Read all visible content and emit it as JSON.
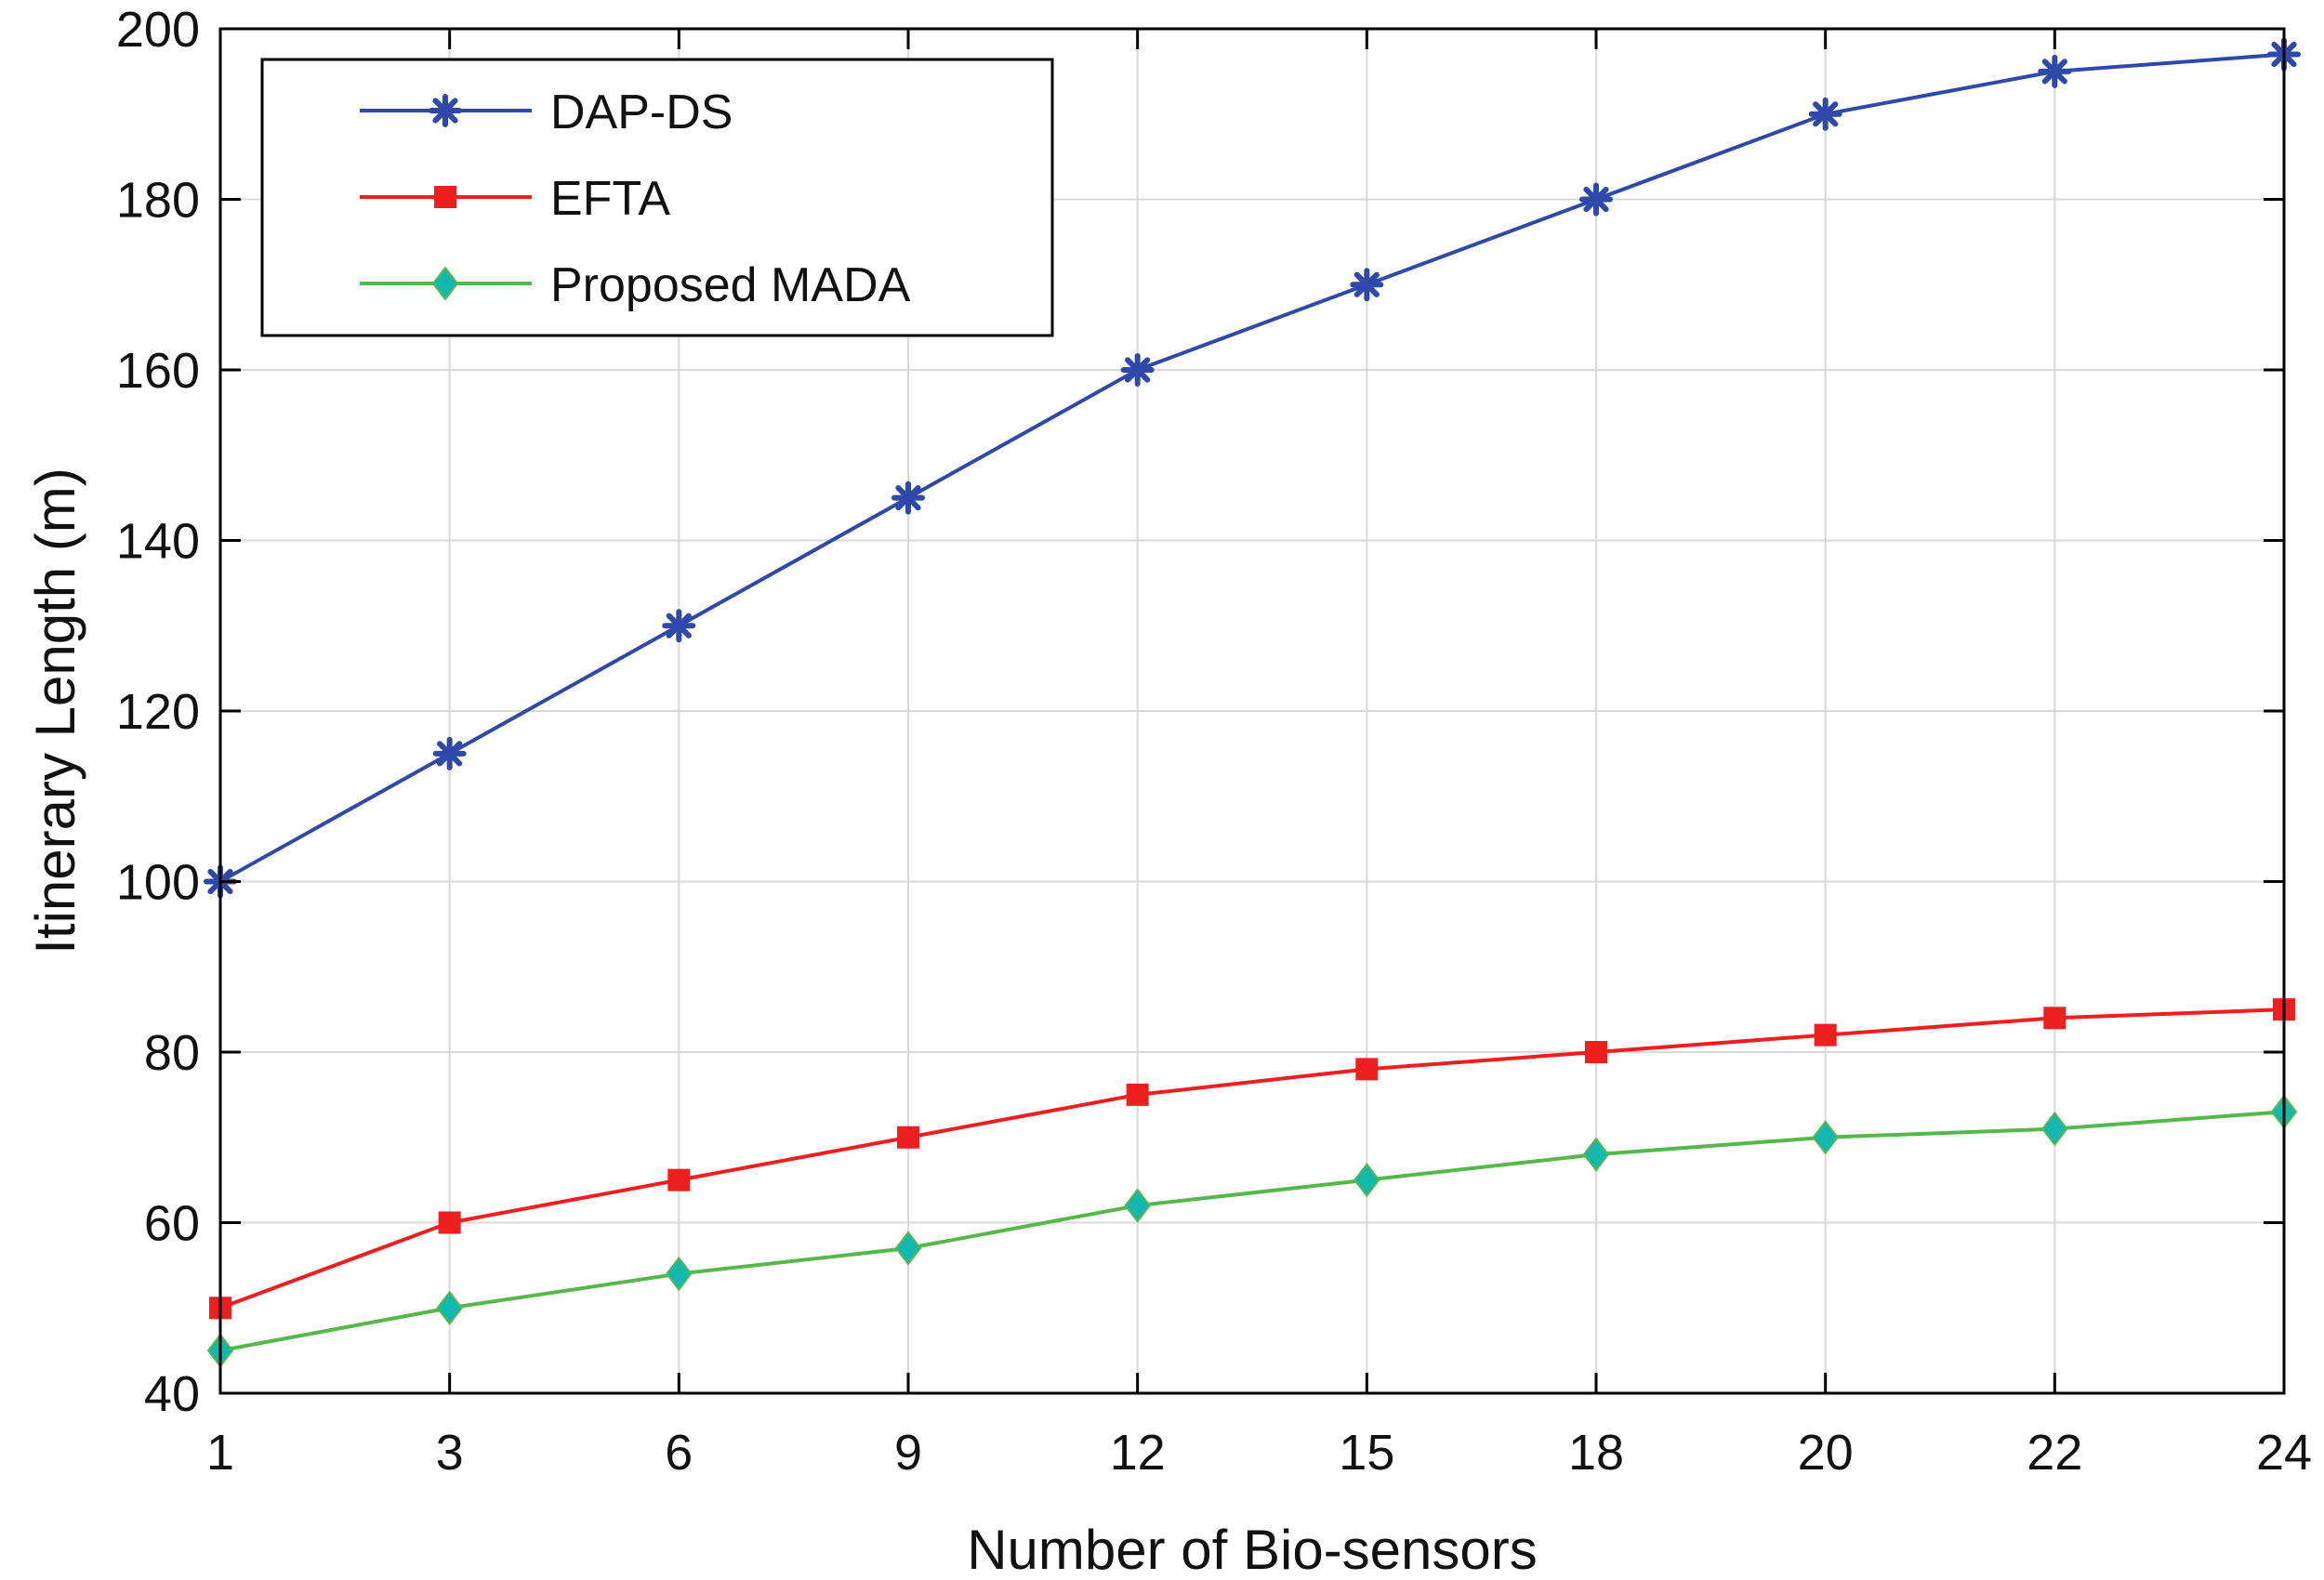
{
  "chart_data": {
    "type": "line",
    "title": "",
    "xlabel": "Number of Bio-sensors",
    "ylabel": "Itinerary Length (m)",
    "categories": [
      "1",
      "3",
      "6",
      "9",
      "12",
      "15",
      "18",
      "20",
      "22",
      "24"
    ],
    "ylim": [
      40,
      200
    ],
    "yticks": [
      40,
      60,
      80,
      100,
      120,
      140,
      160,
      180,
      200
    ],
    "grid": true,
    "legend_position": "top-left",
    "series": [
      {
        "name": "DAP-DS",
        "color": "#2f49a8",
        "marker": "star",
        "values": [
          100,
          115,
          130,
          145,
          160,
          170,
          180,
          190,
          195,
          197
        ]
      },
      {
        "name": "EFTA",
        "color": "#ee1f1f",
        "marker": "square",
        "values": [
          50,
          60,
          65,
          70,
          75,
          78,
          80,
          82,
          84,
          85
        ]
      },
      {
        "name": "Proposed MADA",
        "color": "#55b84a",
        "marker_color": "#14b8b0",
        "marker": "diamond",
        "values": [
          45,
          50,
          54,
          57,
          62,
          65,
          68,
          70,
          71,
          73
        ]
      }
    ]
  }
}
